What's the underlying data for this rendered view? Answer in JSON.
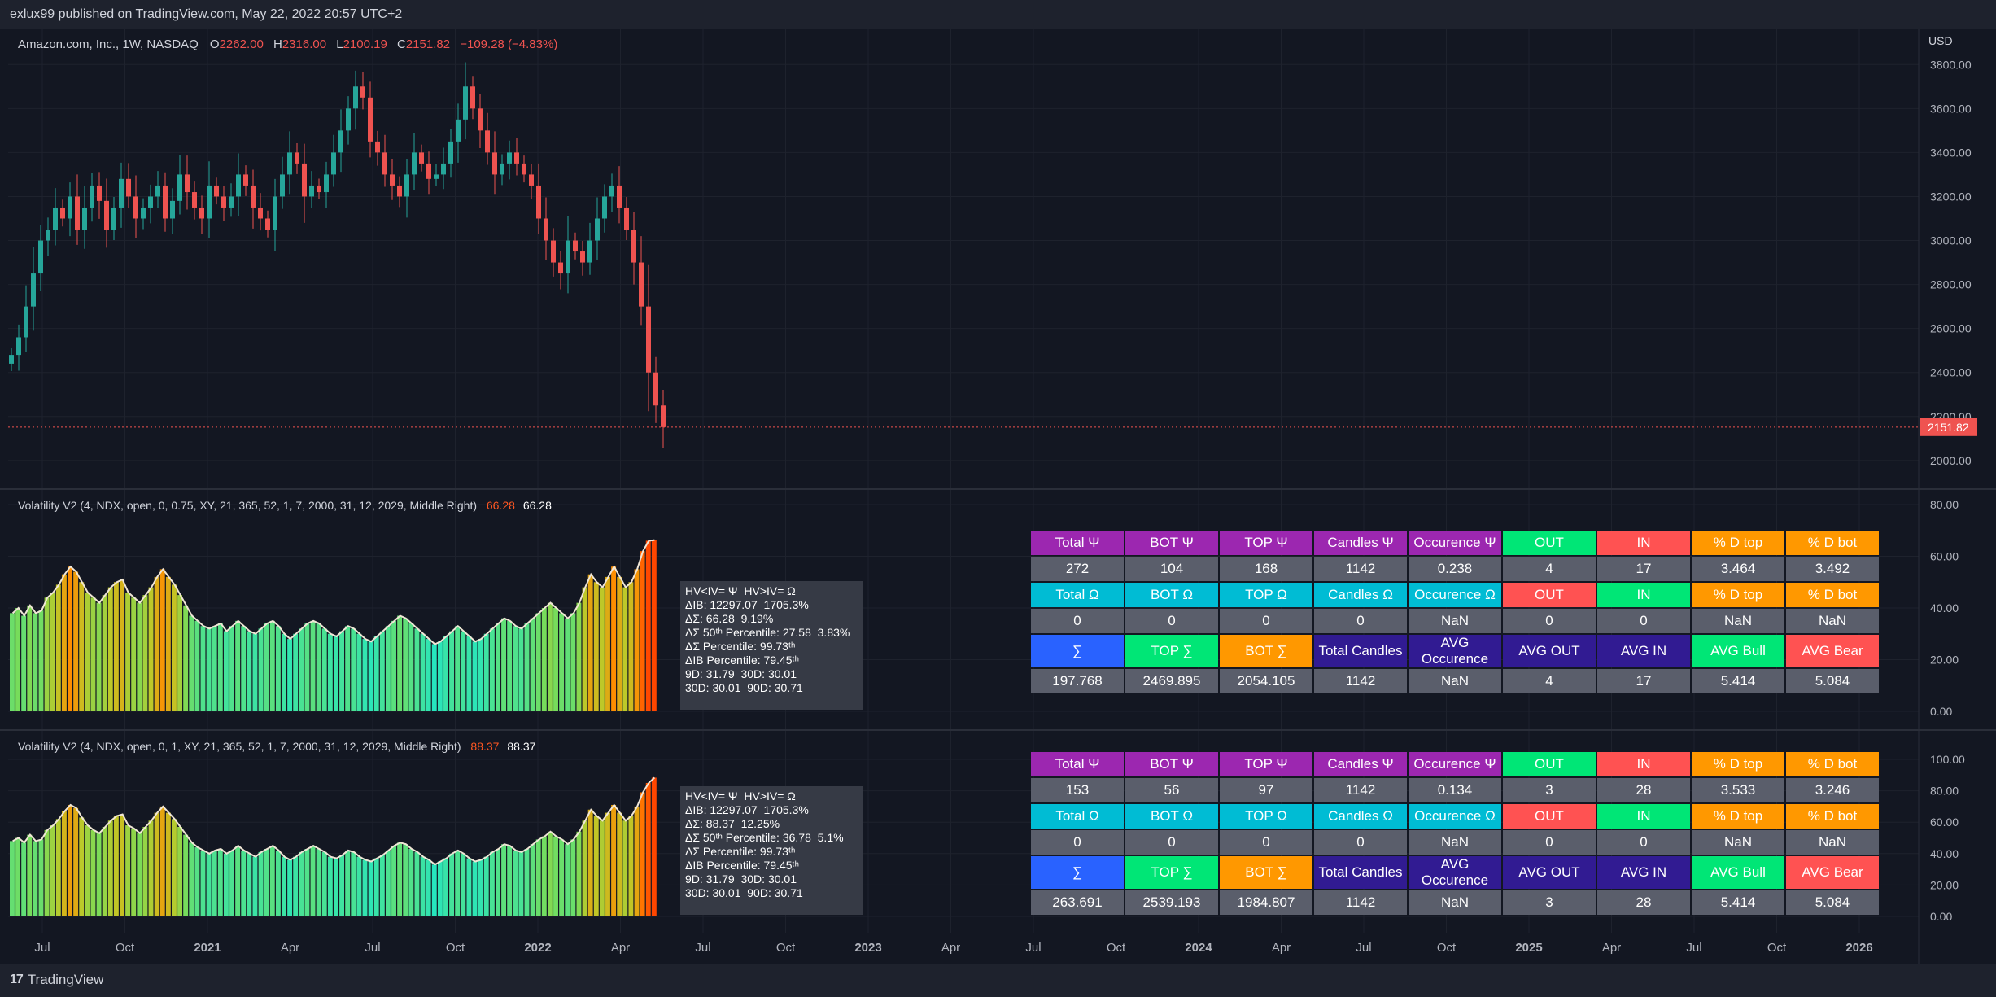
{
  "header": {
    "publish_text": "exlux99 published on TradingView.com, May 22, 2022 20:57 UTC+2"
  },
  "footer": {
    "brand": "TradingView"
  },
  "main_pane": {
    "symbol": "Amazon.com, Inc., 1W, NASDAQ",
    "o_label": "O",
    "o": "2262.00",
    "h_label": "H",
    "h": "2316.00",
    "l_label": "L",
    "l": "2100.19",
    "c_label": "C",
    "c": "2151.82",
    "change": "−109.28 (−4.83%)",
    "currency": "USD",
    "last_price": "2151.82"
  },
  "indicator1": {
    "title": "Volatility V2 (4, NDX, open, 0, 0.75, XY, 21, 365, 52, 1, 7, 2000, 31, 12, 2029, Middle Right)",
    "value_red": "66.28",
    "value_white": "66.28"
  },
  "indicator2": {
    "title": "Volatility V2 (4, NDX, open, 0, 1, XY, 21, 365, 52, 1, 7, 2000, 31, 12, 2029, Middle Right)",
    "value_red": "88.37",
    "value_white": "88.37"
  },
  "tooltip1": {
    "lines": [
      "HV<IV= Ψ  HV>IV= Ω",
      "ΔIB: 12297.07  1705.3%",
      "ΔΣ: 66.28  9.19%",
      "ΔΣ 50ᵗʰ Percentile: 27.58  3.83%",
      "ΔΣ Percentile: 99.73ᵗʰ",
      "ΔIB Percentile: 79.45ᵗʰ",
      "9D: 31.79  30D: 30.01",
      "30D: 30.01  90D: 30.71"
    ]
  },
  "tooltip2": {
    "lines": [
      "HV<IV= Ψ  HV>IV= Ω",
      "ΔIB: 12297.07  1705.3%",
      "ΔΣ: 88.37  12.25%",
      "ΔΣ 50ᵗʰ Percentile: 36.78  5.1%",
      "ΔΣ Percentile: 99.73ᵗʰ",
      "ΔIB Percentile: 79.45ᵗʰ",
      "9D: 31.79  30D: 30.01",
      "30D: 30.01  90D: 30.71"
    ]
  },
  "table1": {
    "rows": [
      [
        "Total Ψ",
        "BOT Ψ",
        "TOP Ψ",
        "Candles Ψ",
        "Occurence Ψ",
        "OUT",
        "IN",
        "% D top",
        "% D bot"
      ],
      [
        "272",
        "104",
        "168",
        "1142",
        "0.238",
        "4",
        "17",
        "3.464",
        "3.492"
      ],
      [
        "Total Ω",
        "BOT Ω",
        "TOP Ω",
        "Candles Ω",
        "Occurence Ω",
        "OUT",
        "IN",
        "% D top",
        "% D bot"
      ],
      [
        "0",
        "0",
        "0",
        "0",
        "NaN",
        "0",
        "0",
        "NaN",
        "NaN"
      ],
      [
        "∑",
        "TOP ∑",
        "BOT ∑",
        "Total Candles",
        "AVG Occurence",
        "AVG OUT",
        "AVG IN",
        "AVG Bull",
        "AVG Bear"
      ],
      [
        "197.768",
        "2469.895",
        "2054.105",
        "1142",
        "NaN",
        "4",
        "17",
        "5.414",
        "5.084"
      ]
    ]
  },
  "table2": {
    "rows": [
      [
        "Total Ψ",
        "BOT Ψ",
        "TOP Ψ",
        "Candles Ψ",
        "Occurence Ψ",
        "OUT",
        "IN",
        "% D top",
        "% D bot"
      ],
      [
        "153",
        "56",
        "97",
        "1142",
        "0.134",
        "3",
        "28",
        "3.533",
        "3.246"
      ],
      [
        "Total Ω",
        "BOT Ω",
        "TOP Ω",
        "Candles Ω",
        "Occurence Ω",
        "OUT",
        "IN",
        "% D top",
        "% D bot"
      ],
      [
        "0",
        "0",
        "0",
        "0",
        "NaN",
        "0",
        "0",
        "NaN",
        "NaN"
      ],
      [
        "∑",
        "TOP ∑",
        "BOT ∑",
        "Total Candles",
        "AVG Occurence",
        "AVG OUT",
        "AVG IN",
        "AVG Bull",
        "AVG Bear"
      ],
      [
        "263.691",
        "2539.193",
        "1984.807",
        "1142",
        "NaN",
        "3",
        "28",
        "5.414",
        "5.084"
      ]
    ]
  },
  "table_colors": {
    "psi_header": "#9c27b0",
    "omega_header": "#00bcd4",
    "out_green": "#00e676",
    "in_red": "#ff5252",
    "pct_orange": "#ff9800",
    "sigma_blue": "#2962ff",
    "top_sigma_green": "#00e676",
    "bot_sigma_orange": "#ff9800",
    "avg_purple": "#311b92",
    "avg_bull": "#00e676",
    "avg_bear": "#ff5252",
    "value_gray": "#5a5e6b"
  },
  "colors": {
    "up": "#26a69a",
    "down": "#ef5350",
    "background": "#131722"
  },
  "chart_data": [
    {
      "type": "candlestick",
      "title": "Amazon.com, Inc., 1W, NASDAQ",
      "ylabel": "USD",
      "ylim": [
        1870,
        3960
      ],
      "y_ticks": [
        2000,
        2200,
        2400,
        2600,
        2800,
        3000,
        3200,
        3400,
        3600,
        3800
      ],
      "x_tick_labels": [
        "Jul",
        "Oct",
        "2021",
        "Apr",
        "Jul",
        "Oct",
        "2022",
        "Apr",
        "Jul",
        "Oct",
        "2023",
        "Apr",
        "Jul",
        "Oct",
        "2024",
        "Apr",
        "Jul",
        "Oct",
        "2025",
        "Apr",
        "Jul",
        "Oct",
        "2026"
      ],
      "last_price_line": 2151.82,
      "close_series": [
        2480,
        2560,
        2700,
        2850,
        3000,
        3050,
        3150,
        3100,
        3200,
        3050,
        3150,
        3250,
        3180,
        3050,
        3150,
        3280,
        3200,
        3100,
        3150,
        3200,
        3250,
        3100,
        3180,
        3300,
        3220,
        3150,
        3100,
        3250,
        3200,
        3150,
        3200,
        3300,
        3250,
        3150,
        3100,
        3050,
        3200,
        3300,
        3400,
        3350,
        3200,
        3250,
        3220,
        3300,
        3400,
        3500,
        3600,
        3700,
        3650,
        3450,
        3400,
        3300,
        3250,
        3200,
        3300,
        3400,
        3350,
        3280,
        3300,
        3350,
        3450,
        3550,
        3700,
        3600,
        3500,
        3400,
        3300,
        3350,
        3400,
        3350,
        3300,
        3250,
        3100,
        3000,
        2900,
        2850,
        3000,
        2950,
        2900,
        3000,
        3100,
        3200,
        3250,
        3150,
        3050,
        2900,
        2700,
        2400,
        2250,
        2151.82
      ]
    },
    {
      "type": "histogram",
      "title": "Volatility V2 (4, NDX, open, 0, 0.75, XY, 21, 365, 52, 1, 7, 2000, 31, 12, 2029, Middle Right)",
      "ylim": [
        0,
        80
      ],
      "y_ticks": [
        0,
        20,
        40,
        60,
        80
      ],
      "values": [
        38,
        40,
        37,
        41,
        38,
        39,
        44,
        46,
        49,
        53,
        56,
        54,
        50,
        46,
        44,
        42,
        45,
        48,
        50,
        51,
        46,
        44,
        42,
        45,
        48,
        52,
        55,
        52,
        49,
        45,
        41,
        37,
        35,
        33,
        32,
        33,
        34,
        31,
        33,
        35,
        33,
        31,
        30,
        32,
        34,
        35,
        33,
        30,
        28,
        30,
        32,
        34,
        35,
        34,
        32,
        30,
        29,
        31,
        33,
        32,
        30,
        28,
        27,
        29,
        31,
        33,
        35,
        37,
        36,
        34,
        32,
        30,
        28,
        26,
        27,
        29,
        31,
        33,
        31,
        29,
        27,
        28,
        30,
        32,
        34,
        36,
        35,
        33,
        32,
        34,
        36,
        38,
        40,
        42,
        40,
        38,
        36,
        38,
        42,
        48,
        53,
        50,
        48,
        52,
        56,
        52,
        48,
        50,
        55,
        62,
        66,
        66.28
      ]
    },
    {
      "type": "histogram",
      "title": "Volatility V2 (4, NDX, open, 0, 1, XY, 21, 365, 52, 1, 7, 2000, 31, 12, 2029, Middle Right)",
      "ylim": [
        0,
        100
      ],
      "y_ticks": [
        0,
        20,
        40,
        60,
        80,
        100
      ],
      "values": [
        48,
        50,
        47,
        52,
        48,
        49,
        55,
        58,
        62,
        67,
        71,
        69,
        63,
        58,
        55,
        53,
        57,
        61,
        64,
        65,
        58,
        56,
        53,
        57,
        61,
        66,
        70,
        66,
        62,
        57,
        52,
        47,
        44,
        42,
        40,
        42,
        43,
        40,
        42,
        45,
        42,
        40,
        38,
        41,
        43,
        45,
        42,
        38,
        36,
        38,
        41,
        43,
        45,
        43,
        41,
        38,
        37,
        39,
        42,
        41,
        38,
        36,
        35,
        37,
        39,
        42,
        45,
        47,
        46,
        43,
        41,
        38,
        36,
        33,
        35,
        37,
        40,
        42,
        40,
        37,
        35,
        36,
        38,
        41,
        43,
        46,
        45,
        42,
        41,
        43,
        46,
        49,
        51,
        54,
        51,
        49,
        46,
        49,
        54,
        61,
        68,
        64,
        61,
        66,
        71,
        66,
        61,
        64,
        70,
        79,
        85,
        88.37
      ]
    }
  ]
}
